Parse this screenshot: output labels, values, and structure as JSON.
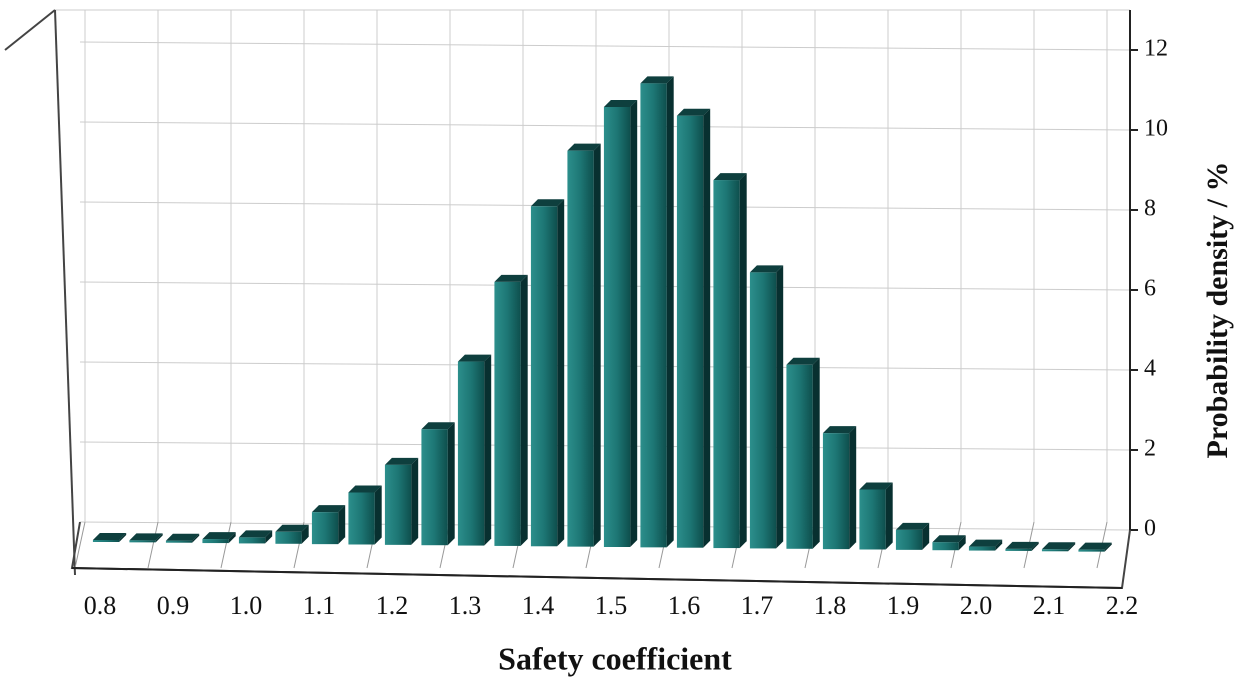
{
  "chart_data": {
    "type": "histogram",
    "xlabel": "Safety coefficient",
    "ylabel": "Probability density / %",
    "bins": [
      0.8,
      0.85,
      0.9,
      0.95,
      1.0,
      1.05,
      1.1,
      1.15,
      1.2,
      1.25,
      1.3,
      1.35,
      1.4,
      1.45,
      1.5,
      1.55,
      1.6,
      1.65,
      1.7,
      1.75,
      1.8,
      1.85,
      1.9,
      1.95,
      2.0,
      2.05,
      2.1,
      2.15,
      2.2
    ],
    "values": [
      0.05,
      0.05,
      0.05,
      0.1,
      0.15,
      0.3,
      0.8,
      1.3,
      2.0,
      2.9,
      4.6,
      6.6,
      8.5,
      9.9,
      11.0,
      11.6,
      10.8,
      9.2,
      6.9,
      4.6,
      2.9,
      1.5,
      0.5,
      0.2,
      0.1,
      0.05,
      0.05,
      0.05
    ],
    "color": "#1d7674",
    "xlim": [
      0.8,
      2.2
    ],
    "xticks": [
      {
        "value": 0.8,
        "label": "0.8"
      },
      0.9,
      {
        "value": 1.0,
        "label": "1.0"
      },
      1.1,
      1.2,
      1.3,
      1.4,
      1.5,
      1.6,
      1.7,
      1.8,
      1.9,
      {
        "value": 2.0,
        "label": "2.0"
      },
      2.1,
      2.2
    ],
    "ylim": [
      -1,
      13
    ],
    "yticks": [
      0,
      2,
      4,
      6,
      8,
      10,
      12
    ],
    "grid": true
  }
}
